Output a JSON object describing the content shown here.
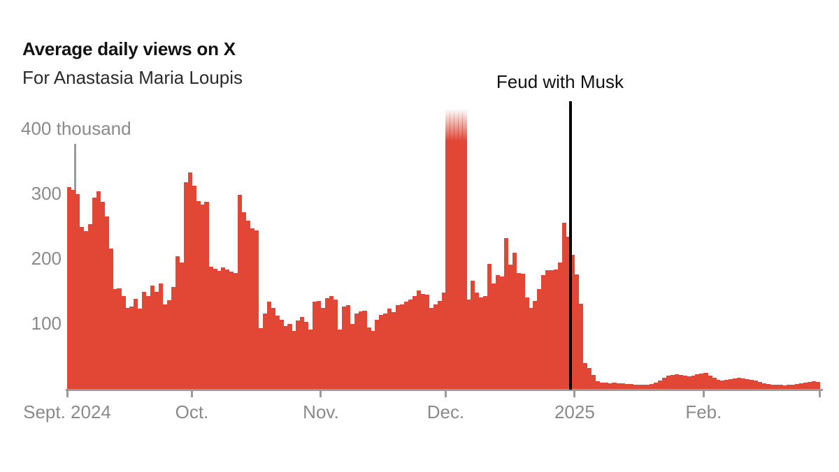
{
  "header": {
    "title": "Average daily views on X",
    "subtitle": "For Anastasia Maria Loupis"
  },
  "chart_data": {
    "type": "bar",
    "title": "Average daily views on X",
    "subtitle": "For Anastasia Maria Loupis",
    "unit": "thousand views per day",
    "y_axis": {
      "top_label": "400 thousand",
      "ticks": [
        100,
        200,
        300
      ],
      "ylim": [
        0,
        400
      ]
    },
    "x_axis": {
      "tick_labels": [
        "Sept. 2024",
        "Oct.",
        "Nov.",
        "Dec.",
        "2025",
        "Feb.",
        ""
      ],
      "tick_day_indices": [
        0,
        30,
        61,
        91,
        122,
        153,
        181
      ]
    },
    "annotation": {
      "text": "Feud with Musk",
      "day_index": 121
    },
    "off_scale_note": "Dec. 1-5 bars exceed 400 thousand and fade off the top of the chart",
    "clipped_above": 400,
    "colors": {
      "bar": "#e24634",
      "axis": "#9b9b9b",
      "gray_text": "#8a8a8a",
      "annotation_line": "#000000"
    },
    "series": {
      "name": "Average daily views",
      "months": [
        {
          "month": "Sept. 2024",
          "values": [
            311,
            306,
            300,
            250,
            243,
            254,
            295,
            304,
            288,
            266,
            216,
            154,
            155,
            143,
            125,
            127,
            139,
            124,
            149,
            143,
            159,
            150,
            162,
            130,
            137,
            157,
            204,
            195,
            318,
            333
          ]
        },
        {
          "month": "Oct. 2024",
          "values": [
            313,
            289,
            284,
            288,
            188,
            185,
            182,
            187,
            184,
            181,
            179,
            299,
            272,
            259,
            247,
            244,
            94,
            116,
            134,
            125,
            113,
            107,
            97,
            100,
            89,
            105,
            111,
            103,
            91,
            134,
            136
          ]
        },
        {
          "month": "Nov. 2024",
          "values": [
            125,
            140,
            143,
            138,
            91,
            127,
            129,
            100,
            116,
            119,
            121,
            95,
            89,
            107,
            114,
            116,
            124,
            118,
            129,
            130,
            134,
            138,
            143,
            152,
            146,
            145,
            125,
            130,
            135,
            148
          ]
        },
        {
          "month": "Dec. 2024",
          "values": [
            450,
            450,
            450,
            450,
            450,
            138,
            167,
            148,
            141,
            143,
            192,
            162,
            175,
            173,
            232,
            191,
            210,
            179,
            177,
            141,
            125,
            136,
            154,
            175,
            183,
            183,
            184,
            195,
            256,
            234,
            207
          ]
        },
        {
          "month": "Jan. 2025",
          "values": [
            176,
            131,
            40,
            32,
            22,
            12,
            10,
            10,
            9,
            10,
            9,
            9,
            8,
            8,
            7,
            7,
            6,
            7,
            8,
            10,
            13,
            17,
            20,
            22,
            23,
            22,
            20,
            19,
            21,
            23,
            24
          ]
        },
        {
          "month": "Feb. 2025",
          "values": [
            25,
            21,
            17,
            14,
            13,
            14,
            15,
            16,
            17,
            16,
            15,
            14,
            13,
            11,
            9,
            8,
            7,
            6,
            6,
            5,
            6,
            7,
            8,
            9,
            10,
            11,
            12,
            11
          ]
        }
      ]
    }
  }
}
